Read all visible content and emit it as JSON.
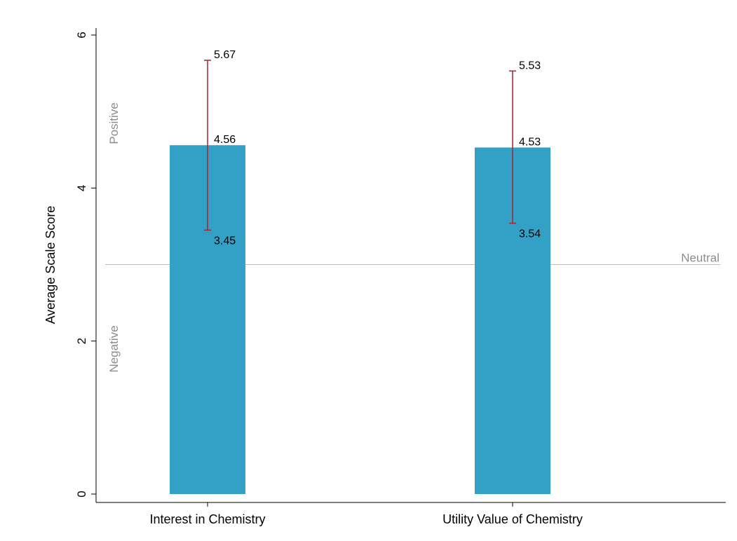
{
  "chart_data": {
    "type": "bar",
    "categories": [
      "Interest in Chemistry",
      "Utility Value of Chemistry"
    ],
    "values": [
      4.56,
      4.53
    ],
    "error_low": [
      3.45,
      3.54
    ],
    "error_high": [
      5.67,
      5.53
    ],
    "value_labels": [
      "4.56",
      "4.53"
    ],
    "error_low_labels": [
      "3.45",
      "3.54"
    ],
    "error_high_labels": [
      "5.67",
      "5.53"
    ],
    "ylabel": "Average Scale Score",
    "xlabel": "",
    "ylim": [
      0,
      6
    ],
    "yticks": [
      "0",
      "2",
      "4",
      "6"
    ],
    "reference_line": {
      "value": 3,
      "label": "Neutral"
    },
    "region_labels": {
      "positive": "Positive",
      "negative": "Negative"
    },
    "grid": false,
    "colors": {
      "bar": "#33a0c6",
      "error_bar": "#a32630",
      "reference_line": "#bdbdbd",
      "region_text": "#8c8c8c"
    }
  }
}
